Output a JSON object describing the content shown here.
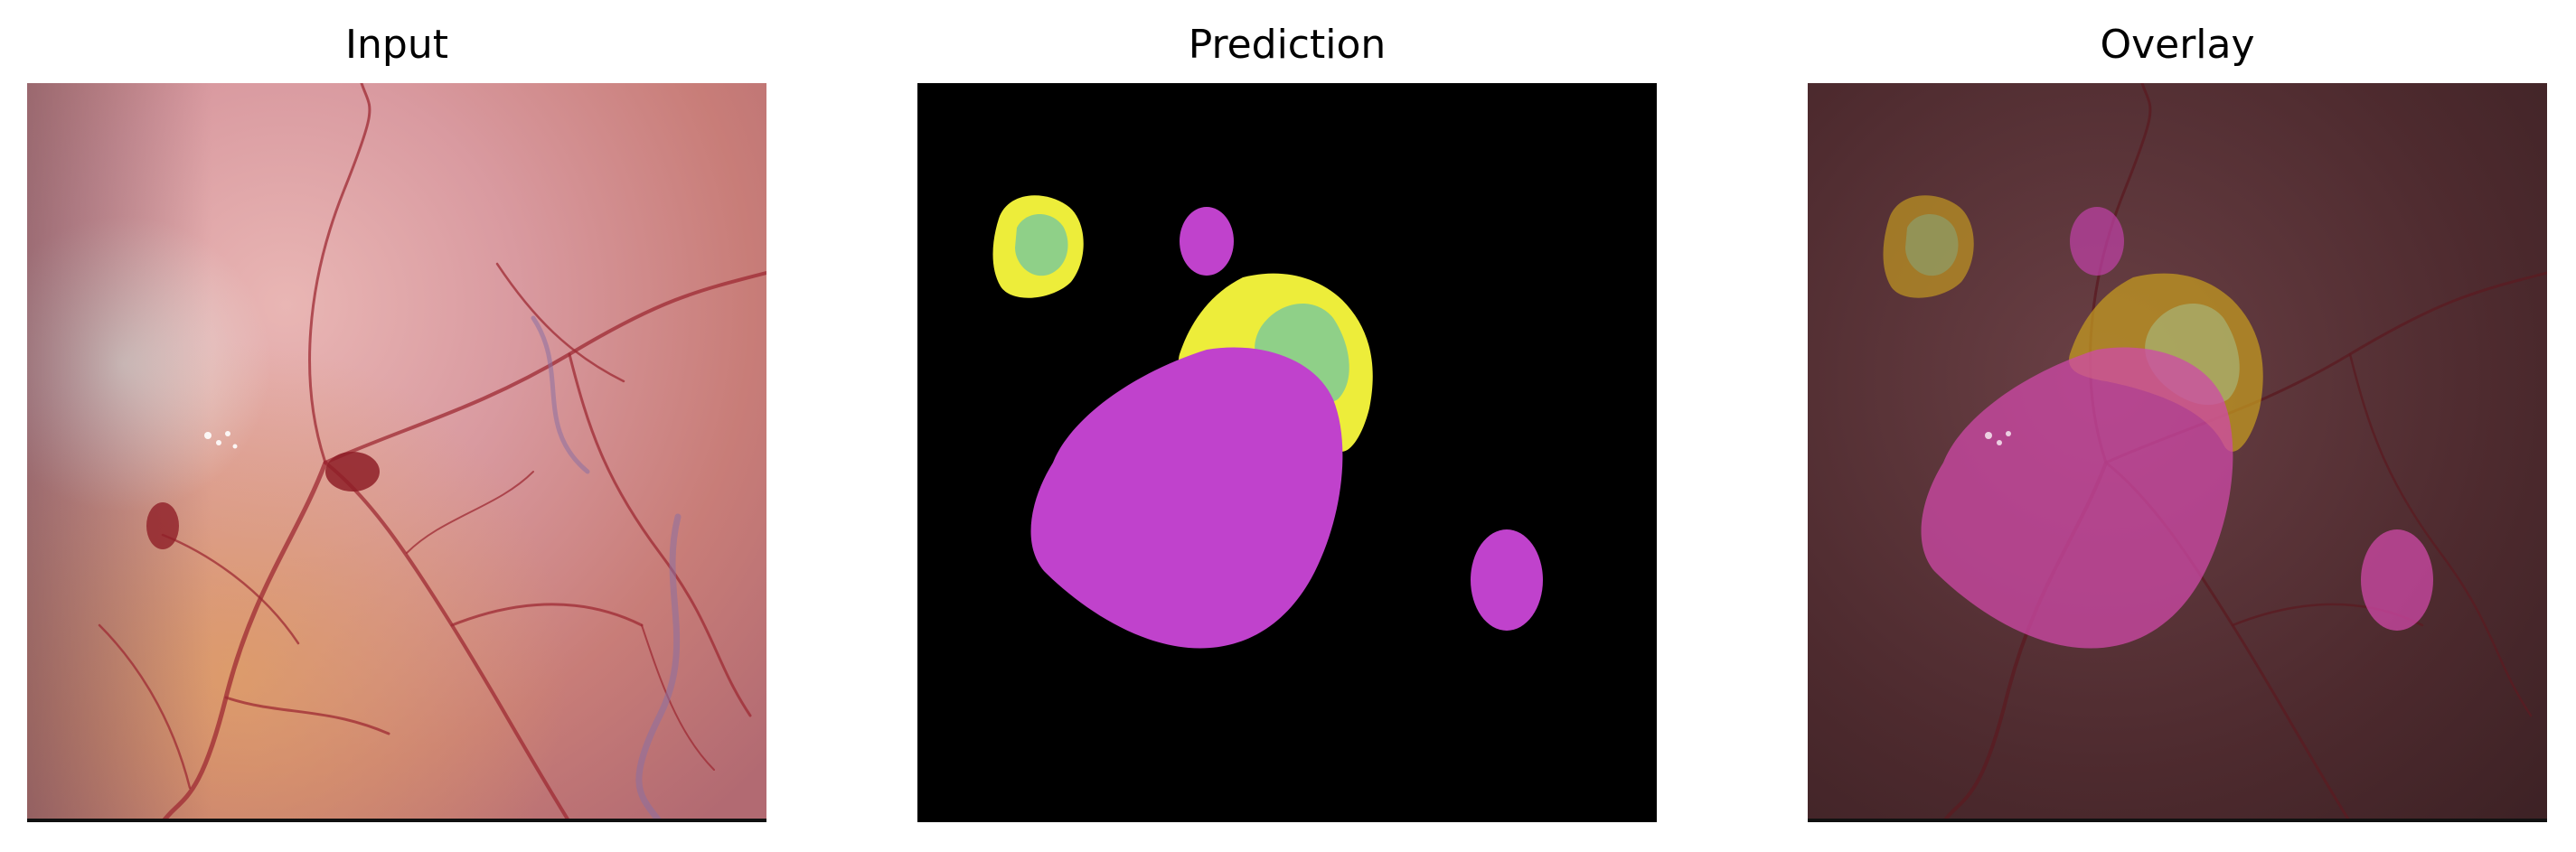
{
  "panels": [
    {
      "id": "input",
      "title": "Input"
    },
    {
      "id": "prediction",
      "title": "Prediction"
    },
    {
      "id": "overlay",
      "title": "Overlay"
    }
  ],
  "colors": {
    "background": "#ffffff",
    "tissue_light": "#d99aa0",
    "tissue_mid": "#c16b72",
    "vessel": "#9e2a33",
    "vein": "#8a6fa3",
    "mask_background": "#000000",
    "class_magenta": "#c042cc",
    "class_yellow": "#eded3a",
    "class_green": "#8fd088",
    "overlay_dark": "#3a2023"
  }
}
